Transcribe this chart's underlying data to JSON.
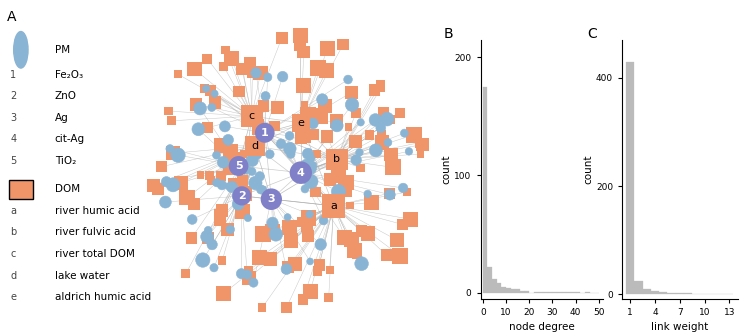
{
  "title_A": "A",
  "title_B": "B",
  "title_C": "C",
  "legend_PM": "PM",
  "legend_DOM": "DOM",
  "legend_pm_items": [
    {
      "label": "Fe₂O₃",
      "num": "1"
    },
    {
      "label": "ZnO",
      "num": "2"
    },
    {
      "label": "Ag",
      "num": "3"
    },
    {
      "label": "cit-Ag",
      "num": "4"
    },
    {
      "label": "TiO₂",
      "num": "5"
    }
  ],
  "legend_dom_items": [
    {
      "label": "river humic acid",
      "letter": "a"
    },
    {
      "label": "river fulvic acid",
      "letter": "b"
    },
    {
      "label": "river total DOM",
      "letter": "c"
    },
    {
      "label": "lake water",
      "letter": "d"
    },
    {
      "label": "aldrich humic acid",
      "letter": "e"
    }
  ],
  "pm_color": "#8ab4d4",
  "pm_hub_color": "#8080c8",
  "dom_color": "#f0956a",
  "edge_color": "#aaaaaa",
  "bg_color": "#ffffff",
  "hist_bar_color": "#bbbbbb",
  "hist_B_xlabel": "node degree",
  "hist_B_ylabel": "count",
  "hist_B_yticks": [
    0,
    100,
    200
  ],
  "hist_B_xticks": [
    0,
    10,
    20,
    30,
    40,
    50
  ],
  "hist_C_xlabel": "link weight",
  "hist_C_ylabel": "count",
  "hist_C_yticks": [
    0,
    200,
    400
  ],
  "hist_C_xticks": [
    1,
    4,
    7,
    10,
    13
  ],
  "seed": 42
}
